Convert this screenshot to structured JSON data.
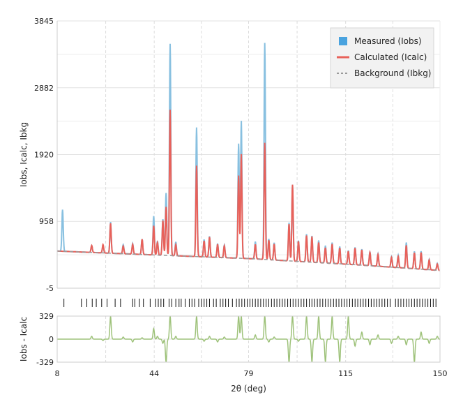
{
  "chart_data": {
    "type": "line",
    "x_label": "2θ (deg)",
    "y_label": "Iobs, Icalc, Ibkg",
    "diff_label": "Iobs - Icalc",
    "x_range": [
      8,
      150
    ],
    "x_ticks": [
      "8",
      "44",
      "79",
      "115",
      "150"
    ],
    "x_tick_values": [
      8,
      44,
      79,
      115,
      150
    ],
    "y_range": [
      -5,
      3845
    ],
    "y_ticks": [
      "-5",
      "958",
      "1920",
      "2882",
      "3845"
    ],
    "y_tick_values": [
      -5,
      958,
      1920,
      2882,
      3845
    ],
    "diff_range": [
      -329,
      329
    ],
    "diff_ticks": [
      "329",
      "0",
      "-329"
    ],
    "diff_tick_values": [
      329,
      0,
      -329
    ],
    "grid": true,
    "legend_position": "top-right",
    "legend": [
      {
        "label": "Measured (Iobs)",
        "color": "#4aa3df",
        "style": "box"
      },
      {
        "label": "Calculated (Icalc)",
        "color": "#e8615a",
        "style": "line"
      },
      {
        "label": "Background (Ibkg)",
        "color": "#9a9a9a",
        "style": "dash"
      }
    ],
    "colors": {
      "measured": "#88c0e0",
      "calculated": "#e8615a",
      "background": "#9a9a9a",
      "difference": "#9ec27a",
      "tick_marks": "#111111"
    },
    "background_curve": [
      [
        8,
        530
      ],
      [
        40,
        480
      ],
      [
        80,
        420
      ],
      [
        120,
        330
      ],
      [
        150,
        250
      ]
    ],
    "peaks": [
      {
        "x": 10.0,
        "obs": 600,
        "calc": 0,
        "diff": 0
      },
      {
        "x": 20.8,
        "obs": 100,
        "calc": 100,
        "diff": 40
      },
      {
        "x": 25.0,
        "obs": 100,
        "calc": 120,
        "diff": -20
      },
      {
        "x": 27.8,
        "obs": 450,
        "calc": 430,
        "diff": 329
      },
      {
        "x": 32.5,
        "obs": 130,
        "calc": 110,
        "diff": 30
      },
      {
        "x": 36.0,
        "obs": 150,
        "calc": 140,
        "diff": -40
      },
      {
        "x": 39.5,
        "obs": 220,
        "calc": 220,
        "diff": 20
      },
      {
        "x": 43.8,
        "obs": 560,
        "calc": 420,
        "diff": 150
      },
      {
        "x": 45.2,
        "obs": 200,
        "calc": 180,
        "diff": 40
      },
      {
        "x": 47.2,
        "obs": 520,
        "calc": 500,
        "diff": -60
      },
      {
        "x": 48.4,
        "obs": 900,
        "calc": 700,
        "diff": -329
      },
      {
        "x": 49.9,
        "obs": 3050,
        "calc": 2100,
        "diff": 329
      },
      {
        "x": 52.0,
        "obs": 200,
        "calc": 160,
        "diff": 40
      },
      {
        "x": 59.7,
        "obs": 1860,
        "calc": 1310,
        "diff": 329
      },
      {
        "x": 62.5,
        "obs": 250,
        "calc": 230,
        "diff": -30
      },
      {
        "x": 64.5,
        "obs": 300,
        "calc": 290,
        "diff": 40
      },
      {
        "x": 67.5,
        "obs": 200,
        "calc": 190,
        "diff": -40
      },
      {
        "x": 70.0,
        "obs": 180,
        "calc": 170,
        "diff": 30
      },
      {
        "x": 75.3,
        "obs": 1650,
        "calc": 1190,
        "diff": 329
      },
      {
        "x": 76.3,
        "obs": 1980,
        "calc": 1500,
        "diff": 329
      },
      {
        "x": 81.5,
        "obs": 250,
        "calc": 210,
        "diff": 60
      },
      {
        "x": 85.0,
        "obs": 3120,
        "calc": 1680,
        "diff": 329
      },
      {
        "x": 86.5,
        "obs": 300,
        "calc": 280,
        "diff": -40
      },
      {
        "x": 88.5,
        "obs": 250,
        "calc": 230,
        "diff": 30
      },
      {
        "x": 94.0,
        "obs": 550,
        "calc": 530,
        "diff": -329
      },
      {
        "x": 95.3,
        "obs": 1100,
        "calc": 1100,
        "diff": 329
      },
      {
        "x": 97.5,
        "obs": 300,
        "calc": 290,
        "diff": -30
      },
      {
        "x": 100.5,
        "obs": 400,
        "calc": 380,
        "diff": 329
      },
      {
        "x": 102.5,
        "obs": 380,
        "calc": 370,
        "diff": -329
      },
      {
        "x": 105.0,
        "obs": 320,
        "calc": 290,
        "diff": 329
      },
      {
        "x": 107.5,
        "obs": 250,
        "calc": 220,
        "diff": -329
      },
      {
        "x": 110.0,
        "obs": 300,
        "calc": 280,
        "diff": 329
      },
      {
        "x": 112.8,
        "obs": 250,
        "calc": 230,
        "diff": -329
      },
      {
        "x": 116.0,
        "obs": 200,
        "calc": 190,
        "diff": 329
      },
      {
        "x": 118.5,
        "obs": 250,
        "calc": 240,
        "diff": -100
      },
      {
        "x": 121.0,
        "obs": 230,
        "calc": 220,
        "diff": 100
      },
      {
        "x": 124.0,
        "obs": 200,
        "calc": 190,
        "diff": -80
      },
      {
        "x": 127.0,
        "obs": 180,
        "calc": 170,
        "diff": 60
      },
      {
        "x": 132.0,
        "obs": 150,
        "calc": 140,
        "diff": -60
      },
      {
        "x": 134.5,
        "obs": 180,
        "calc": 160,
        "diff": 40
      },
      {
        "x": 137.5,
        "obs": 370,
        "calc": 330,
        "diff": -80
      },
      {
        "x": 140.5,
        "obs": 250,
        "calc": 230,
        "diff": -329
      },
      {
        "x": 143.0,
        "obs": 260,
        "calc": 240,
        "diff": 100
      },
      {
        "x": 146.0,
        "obs": 150,
        "calc": 140,
        "diff": -60
      },
      {
        "x": 149.0,
        "obs": 100,
        "calc": 90,
        "diff": 40
      }
    ],
    "reflection_positions": [
      10.5,
      17.0,
      19.0,
      21.0,
      22.5,
      24.5,
      26.5,
      29.5,
      31.5,
      36.0,
      36.8,
      38.5,
      40.0,
      42.5,
      44.5,
      45.5,
      46.5,
      47.5,
      49.5,
      50.5,
      52.0,
      53.2,
      54.0,
      55.5,
      57.0,
      58.0,
      59.0,
      60.5,
      61.5,
      62.5,
      63.5,
      64.5,
      66.0,
      67.0,
      68.5,
      69.5,
      70.5,
      71.5,
      73.0,
      74.5,
      75.5,
      76.5,
      77.5,
      78.5,
      79.5,
      80.5,
      81.5,
      82.5,
      83.5,
      84.5,
      85.5,
      86.5,
      87.5,
      88.5,
      89.5,
      90.5,
      91.5,
      92.5,
      93.5,
      94.5,
      95.5,
      96.5,
      97.5,
      98.5,
      99.5,
      100.5,
      101.5,
      102.5,
      103.5,
      104.5,
      105.5,
      106.5,
      107.5,
      108.5,
      109.5,
      110.5,
      111.5,
      112.5,
      113.5,
      114.5,
      115.5,
      116.5,
      117.5,
      118.5,
      119.5,
      120.5,
      121.5,
      122.5,
      123.5,
      124.5,
      125.5,
      126.5,
      127.5,
      128.5,
      129.5,
      130.5,
      131.5,
      133.5,
      134.5,
      135.5,
      136.5,
      137.5,
      138.5,
      139.5,
      140.5,
      141.5,
      142.5,
      143.5,
      144.5,
      145.5,
      146.5,
      147.5,
      148.5
    ]
  }
}
